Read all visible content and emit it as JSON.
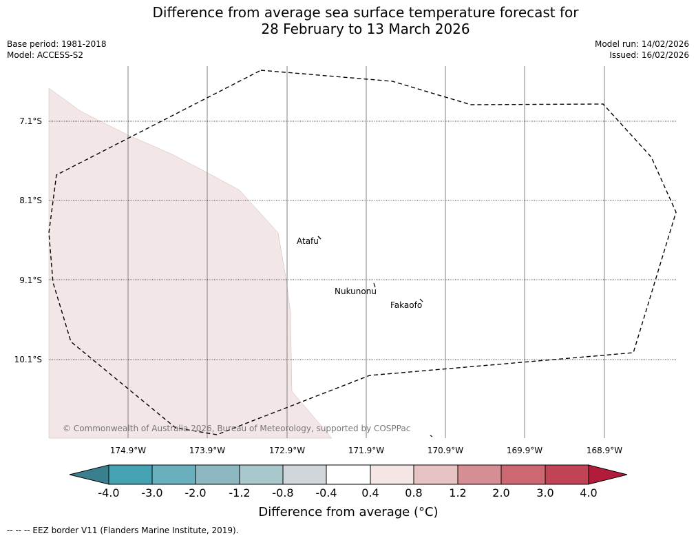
{
  "title": {
    "line1": "Difference from average sea surface temperature forecast for",
    "line2": "28 February to 13 March 2026"
  },
  "meta": {
    "base_period": "Base period: 1981-2018",
    "model": "Model: ACCESS-S2",
    "model_run": "Model run: 14/02/2026",
    "issued": "Issued: 16/02/2026"
  },
  "map": {
    "latitude_labels": [
      "7.1°S",
      "8.1°S",
      "9.1°S",
      "10.1°S"
    ],
    "longitude_labels": [
      "174.9°W",
      "173.9°W",
      "172.9°W",
      "171.9°W",
      "170.9°W",
      "169.9°W",
      "168.9°W"
    ],
    "places": [
      "Atafu",
      "Nukunonu",
      "Fakaofo"
    ],
    "copyright": "© Commonwealth of Australia 2026, Bureau of Meteorology, supported by COSPPac",
    "anomaly_region_color": "#f3e6e6",
    "eez_color": "#000000"
  },
  "colorbar": {
    "ticks": [
      "-4.0",
      "-3.0",
      "-2.0",
      "-1.2",
      "-0.8",
      "-0.4",
      "0.4",
      "0.8",
      "1.2",
      "2.0",
      "3.0",
      "4.0"
    ],
    "colors": [
      "#3a7f8d",
      "#45a3b3",
      "#6aafbd",
      "#8db8c2",
      "#a9c8ce",
      "#d0d6d9",
      "#ffffff",
      "#f5e6e6",
      "#e8c3c3",
      "#d68e95",
      "#cd6772",
      "#c04455",
      "#b01c3a"
    ],
    "label": "Difference from average (°C)"
  },
  "footer": {
    "legend_text": "--  --  -- EEZ border V11 (Flanders Marine Institute, 2019)."
  }
}
